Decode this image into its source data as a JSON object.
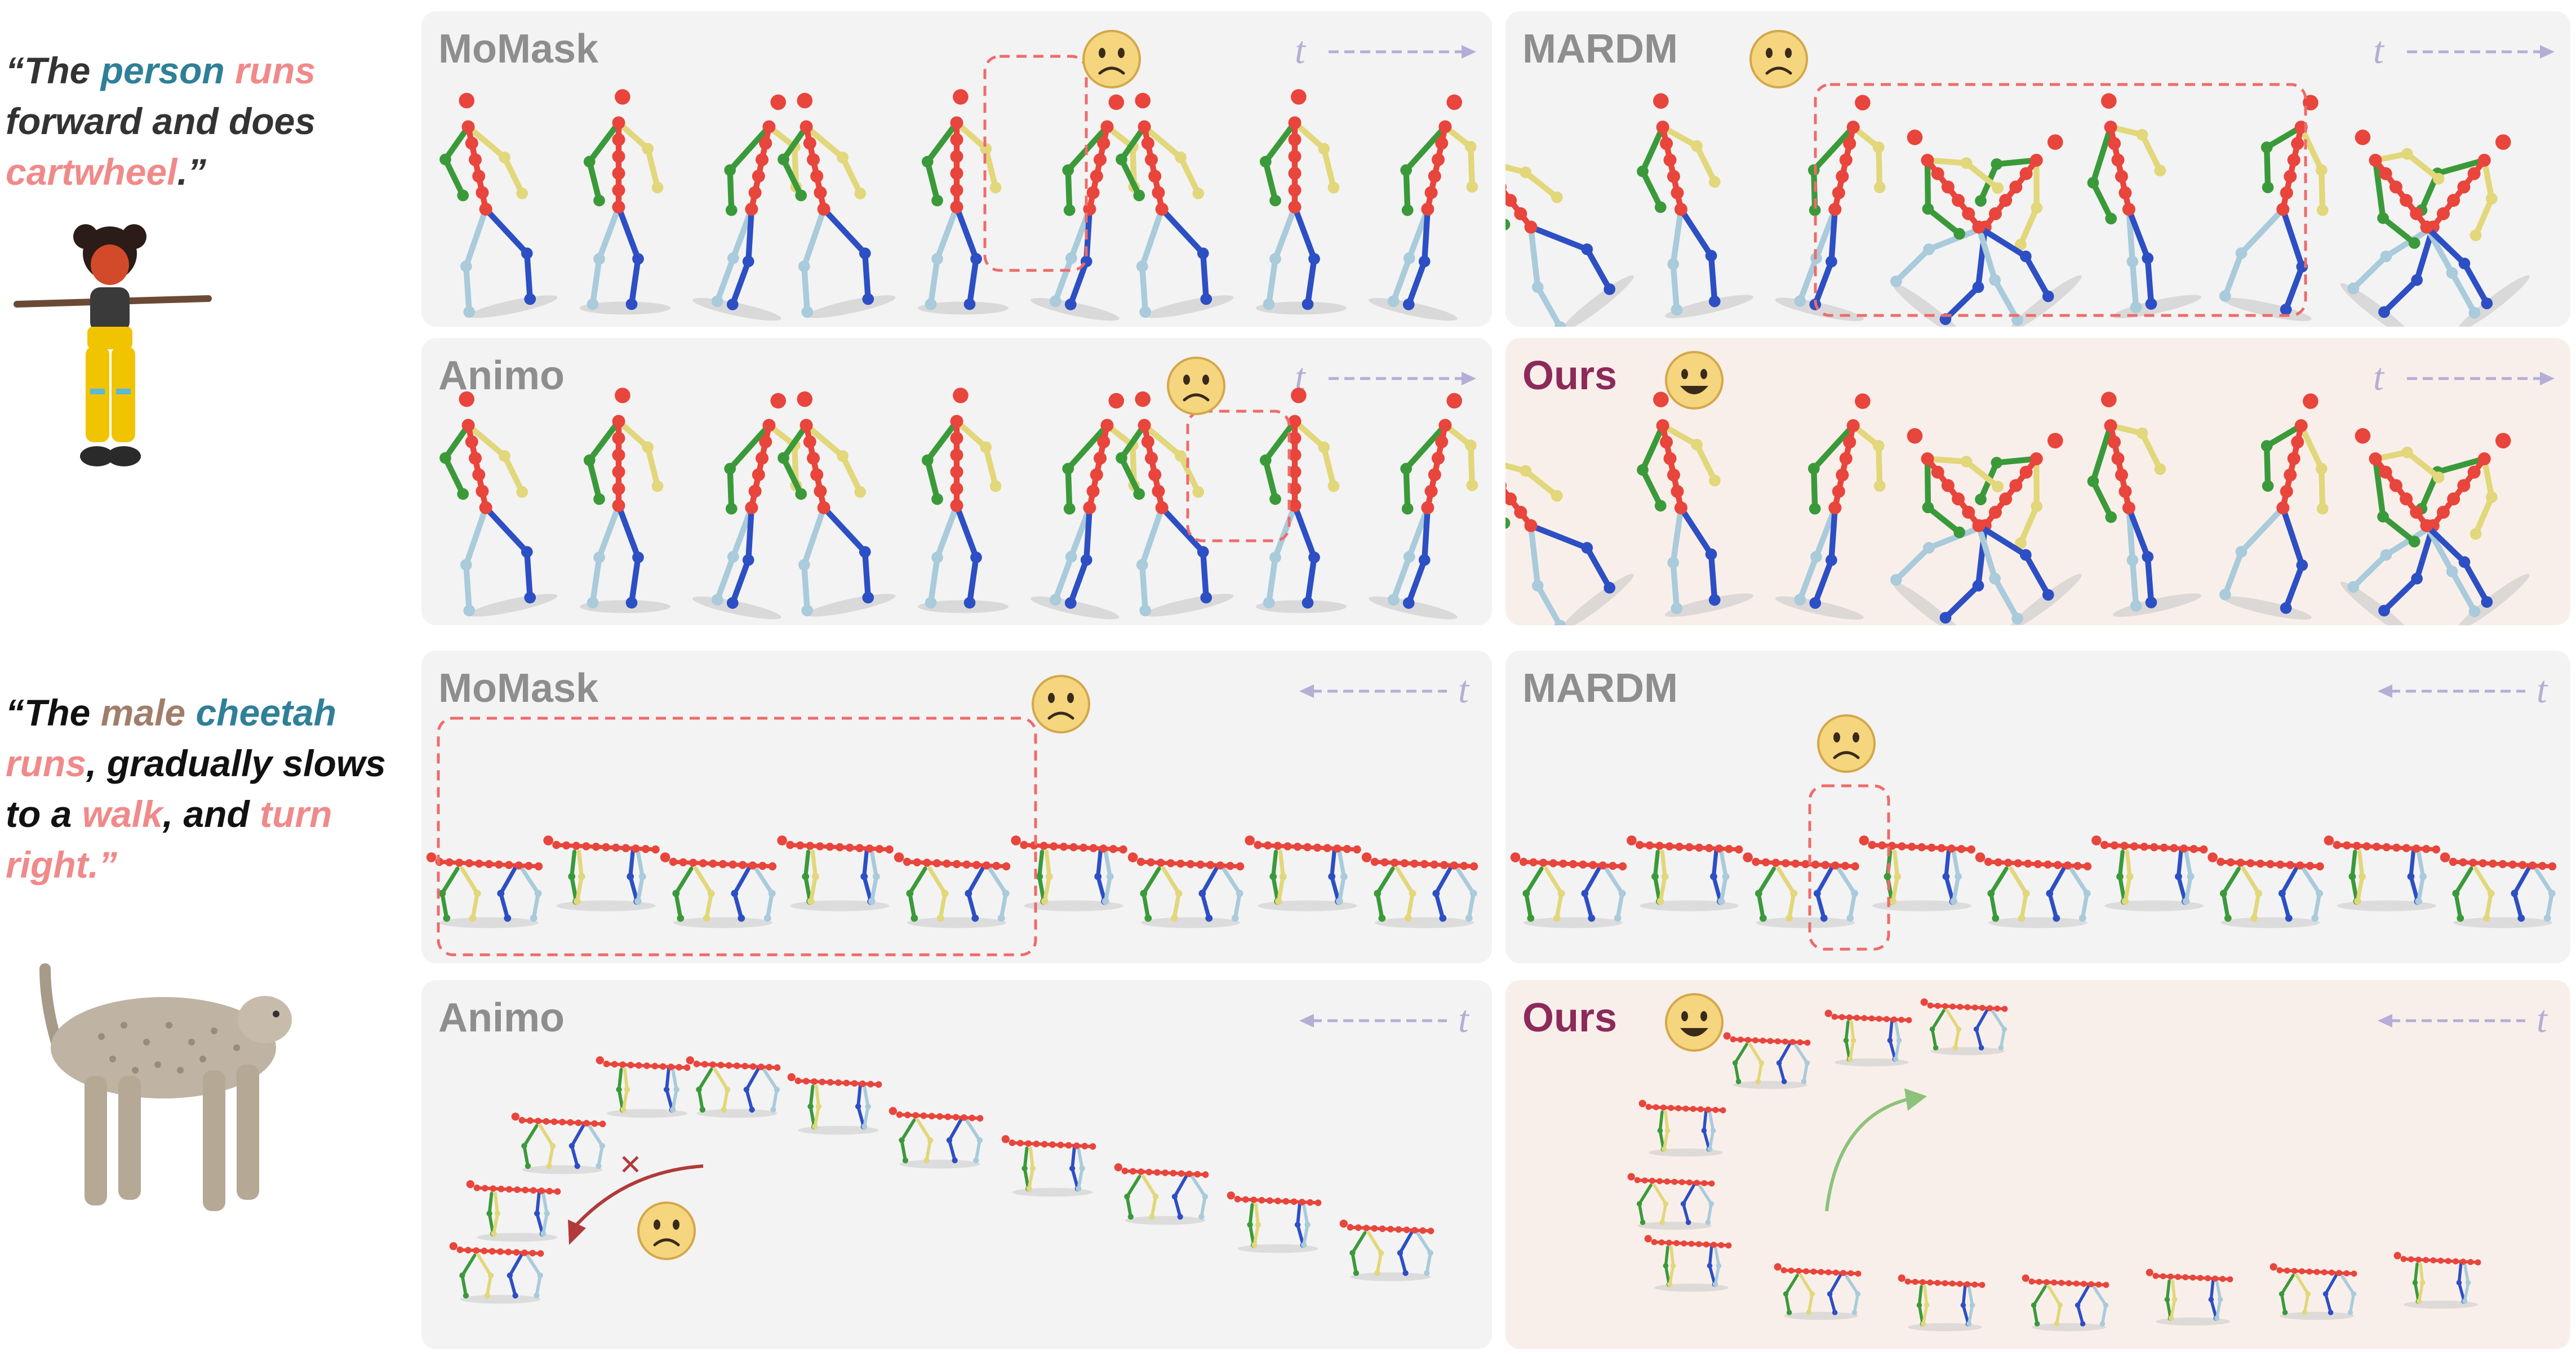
{
  "prompts": [
    {
      "segments": [
        {
          "text": "“The ",
          "style": "w-dark"
        },
        {
          "text": "person",
          "style": "w-blue"
        },
        {
          "text": " ",
          "style": "w-dark"
        },
        {
          "text": "runs",
          "style": "w-pink"
        },
        {
          "text": " forward and does ",
          "style": "w-dark"
        },
        {
          "text": "cartwheel",
          "style": "w-pink"
        },
        {
          "text": ".”",
          "style": "w-dark"
        }
      ]
    },
    {
      "segments": [
        {
          "text": "“The ",
          "style": "w-black"
        },
        {
          "text": "male",
          "style": "w-brown"
        },
        {
          "text": " ",
          "style": "w-black"
        },
        {
          "text": "cheetah",
          "style": "w-blue"
        },
        {
          "text": " ",
          "style": "w-black"
        },
        {
          "text": "runs",
          "style": "w-pink"
        },
        {
          "text": ", gradually slows to a ",
          "style": "w-black"
        },
        {
          "text": "walk",
          "style": "w-pink"
        },
        {
          "text": ", and ",
          "style": "w-black"
        },
        {
          "text": "turn right",
          "style": "w-pink"
        },
        {
          "text": ".”",
          "style": "w-pink"
        }
      ]
    }
  ],
  "panels": {
    "r1_momask": {
      "title": "MoMask",
      "emoji": "sad",
      "time_label": "t"
    },
    "r1_mardm": {
      "title": "MARDM",
      "emoji": "sad",
      "time_label": "t"
    },
    "r1_animo": {
      "title": "Animo",
      "emoji": "sad",
      "time_label": "t"
    },
    "r1_ours": {
      "title": "Ours",
      "emoji": "happy",
      "time_label": "t"
    },
    "r2_momask": {
      "title": "MoMask",
      "emoji": "sad",
      "time_label": "t"
    },
    "r2_mardm": {
      "title": "MARDM",
      "emoji": "sad",
      "time_label": "t"
    },
    "r2_animo": {
      "title": "Animo",
      "emoji": "sad",
      "time_label": "t"
    },
    "r2_ours": {
      "title": "Ours",
      "emoji": "happy",
      "time_label": "t"
    }
  },
  "colors": {
    "spine": "#e8453c",
    "left_limb": "#3a9a3a",
    "right_limb": "#e2d77a",
    "leg_dark": "#2d4fc4",
    "leg_light": "#a9cbdb",
    "highlight_box": "#ee6b6b",
    "time_arrow": "#b4aed6",
    "good_arrow": "#8cc27a",
    "bad_arrow": "#b03a3a"
  }
}
